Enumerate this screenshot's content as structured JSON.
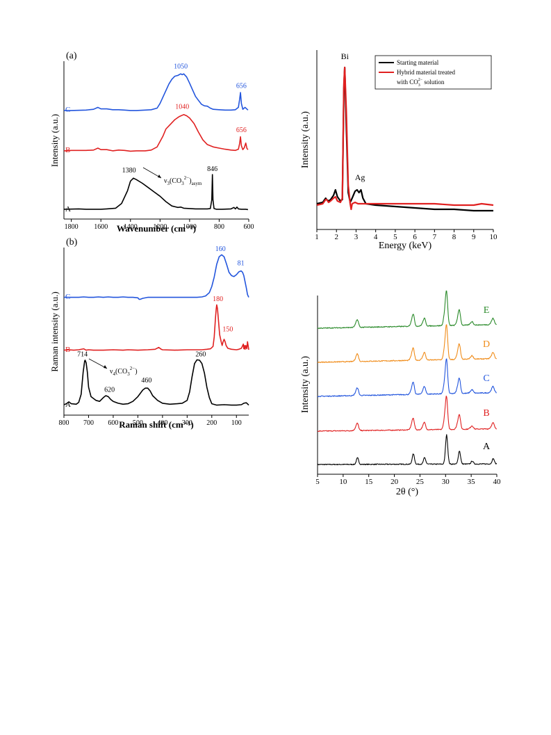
{
  "chart_data": [
    {
      "id": "ftir",
      "type": "line",
      "panel_label": "(a)",
      "xlabel": "Wavenumber (cm⁻¹)",
      "ylabel": "Intensity (a.u.)",
      "xlim": [
        1850,
        600
      ],
      "xticks": [
        "1800",
        "1600",
        "1400",
        "1200",
        "1000",
        "800",
        "600"
      ],
      "xtick_values": [
        1800,
        1600,
        1400,
        1200,
        1000,
        800,
        600
      ],
      "series": [
        {
          "name": "A",
          "color": "#000000",
          "x": [
            1850,
            1750,
            1700,
            1600,
            1560,
            1500,
            1460,
            1420,
            1400,
            1380,
            1360,
            1320,
            1280,
            1240,
            1200,
            1160,
            1120,
            1080,
            1060,
            1040,
            1000,
            960,
            920,
            880,
            860,
            850,
            846,
            842,
            835,
            820,
            780,
            720,
            700,
            690,
            680,
            670,
            650,
            620,
            605
          ],
          "y": [
            0.04,
            0.05,
            0.04,
            0.04,
            0.05,
            0.07,
            0.2,
            0.55,
            0.82,
            0.9,
            0.86,
            0.76,
            0.64,
            0.52,
            0.4,
            0.25,
            0.13,
            0.09,
            0.1,
            0.07,
            0.06,
            0.05,
            0.05,
            0.05,
            0.06,
            0.3,
            1.0,
            0.3,
            0.06,
            0.04,
            0.04,
            0.05,
            0.09,
            0.05,
            0.1,
            0.05,
            0.04,
            0.04,
            0.03
          ]
        },
        {
          "name": "B",
          "color": "#e02020",
          "x": [
            1850,
            1800,
            1700,
            1650,
            1620,
            1600,
            1560,
            1520,
            1480,
            1440,
            1400,
            1360,
            1300,
            1260,
            1220,
            1180,
            1160,
            1130,
            1100,
            1070,
            1040,
            1020,
            1000,
            970,
            940,
            910,
            880,
            840,
            800,
            760,
            720,
            690,
            670,
            662,
            656,
            650,
            640,
            630,
            620,
            612,
            605
          ],
          "y": [
            0.02,
            0.03,
            0.03,
            0.04,
            0.09,
            0.05,
            0.05,
            0.02,
            0.04,
            0.03,
            0.01,
            0.02,
            0.02,
            0.04,
            0.12,
            0.4,
            0.58,
            0.7,
            0.82,
            0.9,
            0.95,
            0.92,
            0.86,
            0.72,
            0.5,
            0.3,
            0.18,
            0.12,
            0.09,
            0.06,
            0.04,
            0.03,
            0.06,
            0.2,
            0.38,
            0.15,
            0.05,
            0.1,
            0.22,
            0.08,
            0.05
          ]
        },
        {
          "name": "C",
          "color": "#2255dd",
          "x": [
            1850,
            1800,
            1700,
            1650,
            1620,
            1600,
            1560,
            1520,
            1480,
            1440,
            1400,
            1360,
            1300,
            1260,
            1220,
            1200,
            1170,
            1140,
            1120,
            1100,
            1080,
            1060,
            1050,
            1040,
            1020,
            1000,
            980,
            960,
            940,
            920,
            900,
            880,
            860,
            840,
            800,
            760,
            720,
            690,
            670,
            662,
            656,
            650,
            640,
            625,
            605
          ],
          "y": [
            0.02,
            0.02,
            0.03,
            0.05,
            0.1,
            0.06,
            0.06,
            0.04,
            0.04,
            0.03,
            0.02,
            0.02,
            0.03,
            0.04,
            0.08,
            0.2,
            0.45,
            0.7,
            0.82,
            0.9,
            0.92,
            0.96,
            0.94,
            0.96,
            0.88,
            0.72,
            0.55,
            0.38,
            0.28,
            0.18,
            0.14,
            0.13,
            0.08,
            0.05,
            0.04,
            0.03,
            0.03,
            0.04,
            0.1,
            0.3,
            0.48,
            0.2,
            0.05,
            0.1,
            0.03
          ]
        }
      ],
      "annotations": [
        {
          "text": "1380",
          "series": "A",
          "x": 1410,
          "y": 1.06
        },
        {
          "text": "846",
          "series": "A",
          "x": 846,
          "y": 1.1
        },
        {
          "text": "1040",
          "series": "B",
          "x": 1050,
          "y": 1.1
        },
        {
          "text": "656",
          "series": "B",
          "x": 650,
          "y": 0.5
        },
        {
          "text": "1050",
          "series": "C",
          "x": 1060,
          "y": 1.1
        },
        {
          "text": "656",
          "series": "C",
          "x": 650,
          "y": 0.6
        }
      ],
      "mode_label": {
        "main": "ν",
        "sub1": "3",
        "mid": "(CO",
        "sub2": "3",
        "sup": "2−",
        "tail": ")",
        "sub3": "asym"
      },
      "trace_labels": [
        "A",
        "B",
        "C"
      ]
    },
    {
      "id": "raman",
      "type": "line",
      "panel_label": "(b)",
      "xlabel": "Raman shift (cm⁻¹)",
      "ylabel": "Raman intensity (a.u.)",
      "xlim": [
        800,
        50
      ],
      "xticks": [
        "800",
        "700",
        "600",
        "500",
        "400",
        "300",
        "200",
        "100"
      ],
      "xtick_values": [
        800,
        700,
        600,
        500,
        400,
        300,
        200,
        100
      ],
      "series": [
        {
          "name": "A",
          "color": "#000000",
          "x": [
            800,
            790,
            780,
            770,
            750,
            740,
            730,
            722,
            716,
            714,
            710,
            705,
            700,
            690,
            680,
            670,
            655,
            640,
            630,
            620,
            610,
            600,
            580,
            560,
            540,
            520,
            500,
            480,
            470,
            460,
            450,
            440,
            420,
            400,
            370,
            340,
            320,
            300,
            290,
            280,
            270,
            260,
            250,
            240,
            230,
            220,
            210,
            200,
            180,
            150,
            120,
            100,
            80,
            70,
            60,
            50
          ],
          "y": [
            0.03,
            0.05,
            0.09,
            0.05,
            0.04,
            0.08,
            0.25,
            0.72,
            0.95,
            0.97,
            0.92,
            0.72,
            0.4,
            0.2,
            0.16,
            0.12,
            0.1,
            0.18,
            0.22,
            0.2,
            0.14,
            0.1,
            0.06,
            0.04,
            0.05,
            0.1,
            0.2,
            0.34,
            0.38,
            0.38,
            0.32,
            0.22,
            0.12,
            0.06,
            0.04,
            0.05,
            0.06,
            0.12,
            0.3,
            0.62,
            0.9,
            0.98,
            0.97,
            0.9,
            0.7,
            0.4,
            0.18,
            0.05,
            0.02,
            0.03,
            0.02,
            0.02,
            0.03,
            0.06,
            0.07,
            0.02
          ]
        },
        {
          "name": "B",
          "color": "#e02020",
          "x": [
            800,
            780,
            760,
            740,
            720,
            710,
            700,
            680,
            640,
            600,
            560,
            540,
            500,
            460,
            430,
            415,
            405,
            400,
            350,
            300,
            260,
            240,
            220,
            205,
            195,
            190,
            185,
            182,
            180,
            177,
            172,
            168,
            162,
            158,
            154,
            150,
            146,
            142,
            135,
            120,
            100,
            90,
            80,
            72,
            70,
            68,
            65,
            62,
            58,
            55,
            52,
            50
          ],
          "y": [
            0.02,
            0.03,
            0.02,
            0.03,
            0.05,
            0.02,
            0.03,
            0.02,
            0.02,
            0.03,
            0.02,
            0.03,
            0.02,
            0.03,
            0.04,
            0.08,
            0.04,
            0.03,
            0.02,
            0.03,
            0.03,
            0.03,
            0.04,
            0.05,
            0.1,
            0.3,
            0.7,
            0.9,
            0.98,
            0.9,
            0.6,
            0.35,
            0.2,
            0.12,
            0.2,
            0.25,
            0.2,
            0.12,
            0.06,
            0.04,
            0.03,
            0.04,
            0.06,
            0.15,
            0.05,
            0.12,
            0.04,
            0.12,
            0.05,
            0.2,
            0.1,
            0.03
          ]
        },
        {
          "name": "C",
          "color": "#2255dd",
          "x": [
            800,
            780,
            760,
            740,
            720,
            700,
            680,
            660,
            640,
            620,
            600,
            580,
            560,
            540,
            520,
            500,
            495,
            490,
            480,
            460,
            440,
            420,
            400,
            380,
            360,
            340,
            320,
            300,
            280,
            260,
            240,
            225,
            210,
            200,
            190,
            180,
            170,
            160,
            150,
            140,
            130,
            120,
            110,
            100,
            90,
            81,
            75,
            70,
            65,
            60,
            55,
            50
          ],
          "y": [
            0.02,
            0.02,
            0.02,
            0.02,
            0.03,
            0.02,
            0.02,
            0.03,
            0.02,
            0.03,
            0.02,
            0.02,
            0.03,
            0.02,
            0.02,
            0.01,
            -0.02,
            -0.02,
            0.0,
            0.02,
            0.02,
            0.02,
            0.02,
            0.02,
            0.02,
            0.02,
            0.02,
            0.02,
            0.02,
            0.02,
            0.03,
            0.05,
            0.12,
            0.25,
            0.45,
            0.72,
            0.88,
            0.92,
            0.88,
            0.72,
            0.55,
            0.48,
            0.46,
            0.5,
            0.56,
            0.58,
            0.55,
            0.48,
            0.35,
            0.22,
            0.08,
            0.02
          ]
        }
      ],
      "annotations": [
        {
          "text": "714",
          "series": "A",
          "x": 725,
          "y": 1.05
        },
        {
          "text": "620",
          "series": "A",
          "x": 615,
          "y": 0.3
        },
        {
          "text": "460",
          "series": "A",
          "x": 465,
          "y": 0.5
        },
        {
          "text": "260",
          "series": "A",
          "x": 245,
          "y": 1.05
        },
        {
          "text": "180",
          "series": "B",
          "x": 175,
          "y": 1.06
        },
        {
          "text": "150",
          "series": "B",
          "x": 135,
          "y": 0.42
        },
        {
          "text": "160",
          "series": "C",
          "x": 165,
          "y": 1.0
        },
        {
          "text": "81",
          "series": "C",
          "x": 82,
          "y": 0.7
        }
      ],
      "mode_label": {
        "main": "ν",
        "sub1": "4",
        "mid": "(CO",
        "sub2": "3",
        "sup": "2−",
        "tail": ")"
      },
      "trace_labels": [
        "A",
        "B",
        "C"
      ]
    },
    {
      "id": "eds",
      "type": "line",
      "xlabel": "Energy (keV)",
      "ylabel": "Intensity (a.u.)",
      "xlim": [
        1,
        10
      ],
      "xticks": [
        "1",
        "2",
        "3",
        "4",
        "5",
        "6",
        "7",
        "8",
        "9",
        "10"
      ],
      "xtick_values": [
        1,
        2,
        3,
        4,
        5,
        6,
        7,
        8,
        9,
        10
      ],
      "legend": {
        "placement": "top-right",
        "entries": [
          {
            "label": "Starting material",
            "color": "#000000"
          },
          {
            "label_line1": "Hybrid material treated",
            "label_line2_pre": "with CO",
            "label_line2_sub": "3",
            "label_line2_sup": "2−",
            "label_line2_post": " solution",
            "color": "#e02020"
          }
        ]
      },
      "series": [
        {
          "name": "Starting material",
          "color": "#000000",
          "x": [
            1.0,
            1.3,
            1.45,
            1.5,
            1.6,
            1.7,
            1.85,
            1.95,
            2.05,
            2.2,
            2.3,
            2.38,
            2.42,
            2.5,
            2.6,
            2.7,
            2.8,
            2.95,
            3.05,
            3.15,
            3.25,
            3.35,
            3.5,
            4.0,
            5.0,
            6.0,
            7.0,
            8.0,
            9.0,
            10.0
          ],
          "y": [
            0.02,
            0.03,
            0.06,
            0.05,
            0.04,
            0.05,
            0.08,
            0.12,
            0.07,
            0.04,
            0.05,
            0.85,
            1.0,
            0.6,
            0.1,
            0.03,
            0.06,
            0.11,
            0.12,
            0.1,
            0.12,
            0.06,
            0.02,
            0.01,
            0.0,
            -0.01,
            -0.02,
            -0.02,
            -0.03,
            -0.03
          ]
        },
        {
          "name": "Hybrid material treated with CO3²⁻ solution",
          "color": "#e02020",
          "x": [
            1.0,
            1.3,
            1.45,
            1.5,
            1.6,
            1.7,
            1.85,
            1.95,
            2.05,
            2.2,
            2.3,
            2.38,
            2.42,
            2.5,
            2.6,
            2.7,
            2.75,
            2.8,
            2.95,
            3.1,
            3.3,
            4.0,
            5.0,
            6.0,
            7.0,
            8.0,
            9.0,
            9.4,
            10.0
          ],
          "y": [
            0.01,
            0.02,
            0.05,
            0.05,
            0.03,
            0.04,
            0.06,
            0.07,
            0.04,
            0.03,
            0.06,
            0.88,
            1.0,
            0.7,
            0.15,
            0.02,
            -0.02,
            0.02,
            0.03,
            0.02,
            0.02,
            0.02,
            0.02,
            0.02,
            0.02,
            0.01,
            0.01,
            0.02,
            0.01
          ]
        }
      ],
      "annotations": [
        {
          "text": "Bi",
          "x": 2.43,
          "y": 1.06
        },
        {
          "text": "Ag",
          "x": 3.2,
          "y": 0.19
        }
      ]
    },
    {
      "id": "xrd",
      "type": "line",
      "xlabel": "2θ (°)",
      "ylabel": "Intensity (a.u.)",
      "xlim": [
        5,
        40
      ],
      "xticks": [
        "5",
        "10",
        "15",
        "20",
        "25",
        "30",
        "35",
        "40"
      ],
      "xtick_values": [
        5,
        10,
        15,
        20,
        25,
        30,
        35,
        40
      ],
      "peaks": [
        [
          12.8,
          0.22
        ],
        [
          23.7,
          0.35
        ],
        [
          25.9,
          0.22
        ],
        [
          30.2,
          1.0
        ],
        [
          32.7,
          0.45
        ],
        [
          35.2,
          0.1
        ],
        [
          39.3,
          0.18
        ]
      ],
      "series": [
        {
          "name": "A",
          "color": "#000000",
          "baseline": [
            0.0,
            0.02
          ]
        },
        {
          "name": "B",
          "color": "#e02020",
          "baseline": [
            0.0,
            0.08
          ]
        },
        {
          "name": "C",
          "color": "#2255dd",
          "baseline": [
            0.0,
            0.12
          ]
        },
        {
          "name": "D",
          "color": "#f08c1a",
          "baseline": [
            0.0,
            0.12
          ]
        },
        {
          "name": "E",
          "color": "#2a8a2a",
          "baseline": [
            0.0,
            0.12
          ]
        }
      ],
      "trace_labels": [
        "A",
        "B",
        "C",
        "D",
        "E"
      ]
    }
  ]
}
